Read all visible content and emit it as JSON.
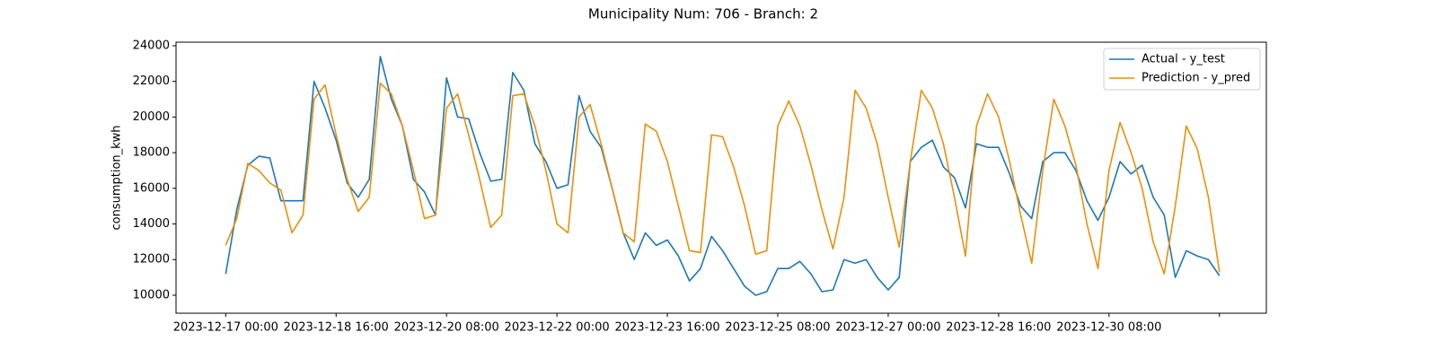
{
  "chart_data": {
    "type": "line",
    "title": "Municipality Num: 706 - Branch: 2",
    "y_label": "consumption_kwh",
    "x": [
      "2023-12-17 00:00",
      "2023-12-17 04:00",
      "2023-12-17 08:00",
      "2023-12-17 12:00",
      "2023-12-17 16:00",
      "2023-12-17 20:00",
      "2023-12-18 00:00",
      "2023-12-18 04:00",
      "2023-12-18 08:00",
      "2023-12-18 12:00",
      "2023-12-18 16:00",
      "2023-12-18 20:00",
      "2023-12-19 00:00",
      "2023-12-19 04:00",
      "2023-12-19 08:00",
      "2023-12-19 12:00",
      "2023-12-19 16:00",
      "2023-12-19 20:00",
      "2023-12-20 00:00",
      "2023-12-20 04:00",
      "2023-12-20 08:00",
      "2023-12-20 12:00",
      "2023-12-20 16:00",
      "2023-12-20 20:00",
      "2023-12-21 00:00",
      "2023-12-21 04:00",
      "2023-12-21 08:00",
      "2023-12-21 12:00",
      "2023-12-21 16:00",
      "2023-12-21 20:00",
      "2023-12-22 00:00",
      "2023-12-22 04:00",
      "2023-12-22 08:00",
      "2023-12-22 12:00",
      "2023-12-22 16:00",
      "2023-12-22 20:00",
      "2023-12-23 00:00",
      "2023-12-23 04:00",
      "2023-12-23 08:00",
      "2023-12-23 12:00",
      "2023-12-23 16:00",
      "2023-12-23 20:00",
      "2023-12-24 00:00",
      "2023-12-24 04:00",
      "2023-12-24 08:00",
      "2023-12-24 12:00",
      "2023-12-24 16:00",
      "2023-12-24 20:00",
      "2023-12-25 00:00",
      "2023-12-25 04:00",
      "2023-12-25 08:00",
      "2023-12-25 12:00",
      "2023-12-25 16:00",
      "2023-12-25 20:00",
      "2023-12-26 00:00",
      "2023-12-26 04:00",
      "2023-12-26 08:00",
      "2023-12-26 12:00",
      "2023-12-26 16:00",
      "2023-12-26 20:00",
      "2023-12-27 00:00",
      "2023-12-27 04:00",
      "2023-12-27 08:00",
      "2023-12-27 12:00",
      "2023-12-27 16:00",
      "2023-12-27 20:00",
      "2023-12-28 00:00",
      "2023-12-28 04:00",
      "2023-12-28 08:00",
      "2023-12-28 12:00",
      "2023-12-28 16:00",
      "2023-12-28 20:00",
      "2023-12-29 00:00",
      "2023-12-29 04:00",
      "2023-12-29 08:00",
      "2023-12-29 12:00",
      "2023-12-29 16:00",
      "2023-12-29 20:00",
      "2023-12-30 00:00",
      "2023-12-30 04:00",
      "2023-12-30 08:00",
      "2023-12-30 12:00",
      "2023-12-30 16:00",
      "2023-12-30 20:00",
      "2023-12-31 00:00",
      "2023-12-31 04:00",
      "2023-12-31 08:00",
      "2023-12-31 12:00",
      "2023-12-31 16:00",
      "2023-12-31 20:00",
      "2024-01-01 00:00"
    ],
    "series": [
      {
        "name": "Actual - y_test",
        "color": "#1f77b4",
        "values": [
          11200,
          14800,
          17300,
          17800,
          17700,
          15300,
          15300,
          15300,
          22000,
          20500,
          18700,
          16300,
          15500,
          16500,
          23400,
          21000,
          19500,
          16500,
          15800,
          14500,
          22200,
          20000,
          19900,
          18000,
          16400,
          16500,
          22500,
          21500,
          18500,
          17500,
          16000,
          16200,
          21200,
          19200,
          18300,
          16000,
          13500,
          12000,
          13500,
          12800,
          13100,
          12200,
          10800,
          11500,
          13300,
          12500,
          11500,
          10500,
          10000,
          10200,
          11500,
          11500,
          11900,
          11200,
          10200,
          10300,
          12000,
          11800,
          12000,
          11000,
          10300,
          11000,
          17500,
          18300,
          18700,
          17200,
          16600,
          14900,
          18500,
          18300,
          18300,
          16800,
          15000,
          14300,
          17500,
          18000,
          18000,
          17000,
          15300,
          14200,
          15500,
          17500,
          16800,
          17300,
          15500,
          14500,
          11000,
          12500,
          12200,
          12000,
          11100
        ]
      },
      {
        "name": "Prediction - y_pred",
        "color": "#e8900c",
        "values": [
          12800,
          14300,
          17400,
          17000,
          16300,
          15900,
          13500,
          14500,
          21000,
          21800,
          19000,
          16500,
          14700,
          15500,
          21900,
          21300,
          19500,
          17000,
          14300,
          14500,
          20500,
          21300,
          19000,
          16500,
          13800,
          14500,
          21200,
          21300,
          19500,
          17000,
          14000,
          13500,
          20000,
          20700,
          18500,
          16000,
          13500,
          13000,
          19600,
          19200,
          17500,
          15000,
          12500,
          12400,
          19000,
          18900,
          17200,
          15000,
          12300,
          12500,
          19500,
          20900,
          19500,
          17300,
          14800,
          12600,
          15500,
          21500,
          20500,
          18500,
          15500,
          12700,
          17500,
          21500,
          20500,
          18500,
          15500,
          12200,
          19500,
          21300,
          20000,
          17500,
          14500,
          11800,
          17000,
          21000,
          19500,
          17300,
          14000,
          11500,
          17000,
          19700,
          18000,
          16000,
          13000,
          11200,
          15000,
          19500,
          18200,
          15500,
          11300
        ]
      }
    ],
    "xlim": [
      "2023-12-16 06:00",
      "2024-01-01 17:00"
    ],
    "xticks": [
      "2023-12-17 00:00",
      "2023-12-18 16:00",
      "2023-12-20 08:00",
      "2023-12-22 00:00",
      "2023-12-23 16:00",
      "2023-12-25 08:00",
      "2023-12-27 00:00",
      "2023-12-28 16:00",
      "2023-12-30 08:00",
      {
        "value": "2024-01-01 00:00",
        "label": null
      }
    ],
    "ylim": [
      8990,
      24200
    ],
    "yticks": [
      10000,
      12000,
      14000,
      16000,
      18000,
      20000,
      22000,
      24000
    ],
    "grid": false,
    "legend": "upper right"
  }
}
